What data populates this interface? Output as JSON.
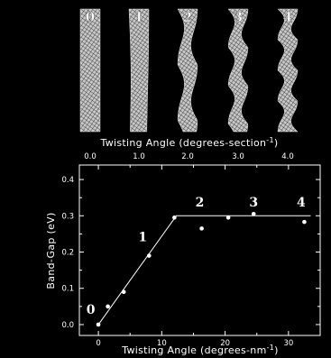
{
  "tubes": {
    "labels": [
      "0",
      "1",
      "2",
      "3",
      "4"
    ],
    "xlabel": "Twisting Angle (degrees-section",
    "xlabel_sup": "-1",
    "ticks": [
      "0.0",
      "1.0",
      "2.0",
      "3.0",
      "4.0"
    ]
  },
  "chart_data": {
    "type": "scatter",
    "xlabel": "Twisting Angle (degrees-nm",
    "xlabel_sup": "-1",
    "ylabel": "Band-Gap (eV)",
    "xlim": [
      -3,
      35
    ],
    "ylim": [
      -0.03,
      0.44
    ],
    "xticks": [
      0,
      10,
      20,
      30
    ],
    "yticks": [
      0.0,
      0.1,
      0.2,
      0.3,
      0.4
    ],
    "ytick_labels": [
      "0.0",
      "0.1",
      "0.2",
      "0.3",
      "0.4"
    ],
    "points": [
      {
        "x": 0,
        "y": 0.0
      },
      {
        "x": 1.5,
        "y": 0.05
      },
      {
        "x": 4,
        "y": 0.09
      },
      {
        "x": 8,
        "y": 0.19
      },
      {
        "x": 12,
        "y": 0.295
      },
      {
        "x": 16.3,
        "y": 0.265
      },
      {
        "x": 20.5,
        "y": 0.295
      },
      {
        "x": 24.5,
        "y": 0.305
      },
      {
        "x": 32.5,
        "y": 0.283
      }
    ],
    "fit_line": [
      {
        "x": 0,
        "y": 0.0
      },
      {
        "x": 12.3,
        "y": 0.3
      },
      {
        "x": 33.5,
        "y": 0.3
      }
    ],
    "annotations": [
      {
        "label": "0",
        "x": -1.2,
        "y": 0.03
      },
      {
        "label": "1",
        "x": 7.0,
        "y": 0.23
      },
      {
        "label": "2",
        "x": 16.0,
        "y": 0.325
      },
      {
        "label": "3",
        "x": 24.5,
        "y": 0.325
      },
      {
        "label": "4",
        "x": 32.0,
        "y": 0.325
      }
    ]
  }
}
